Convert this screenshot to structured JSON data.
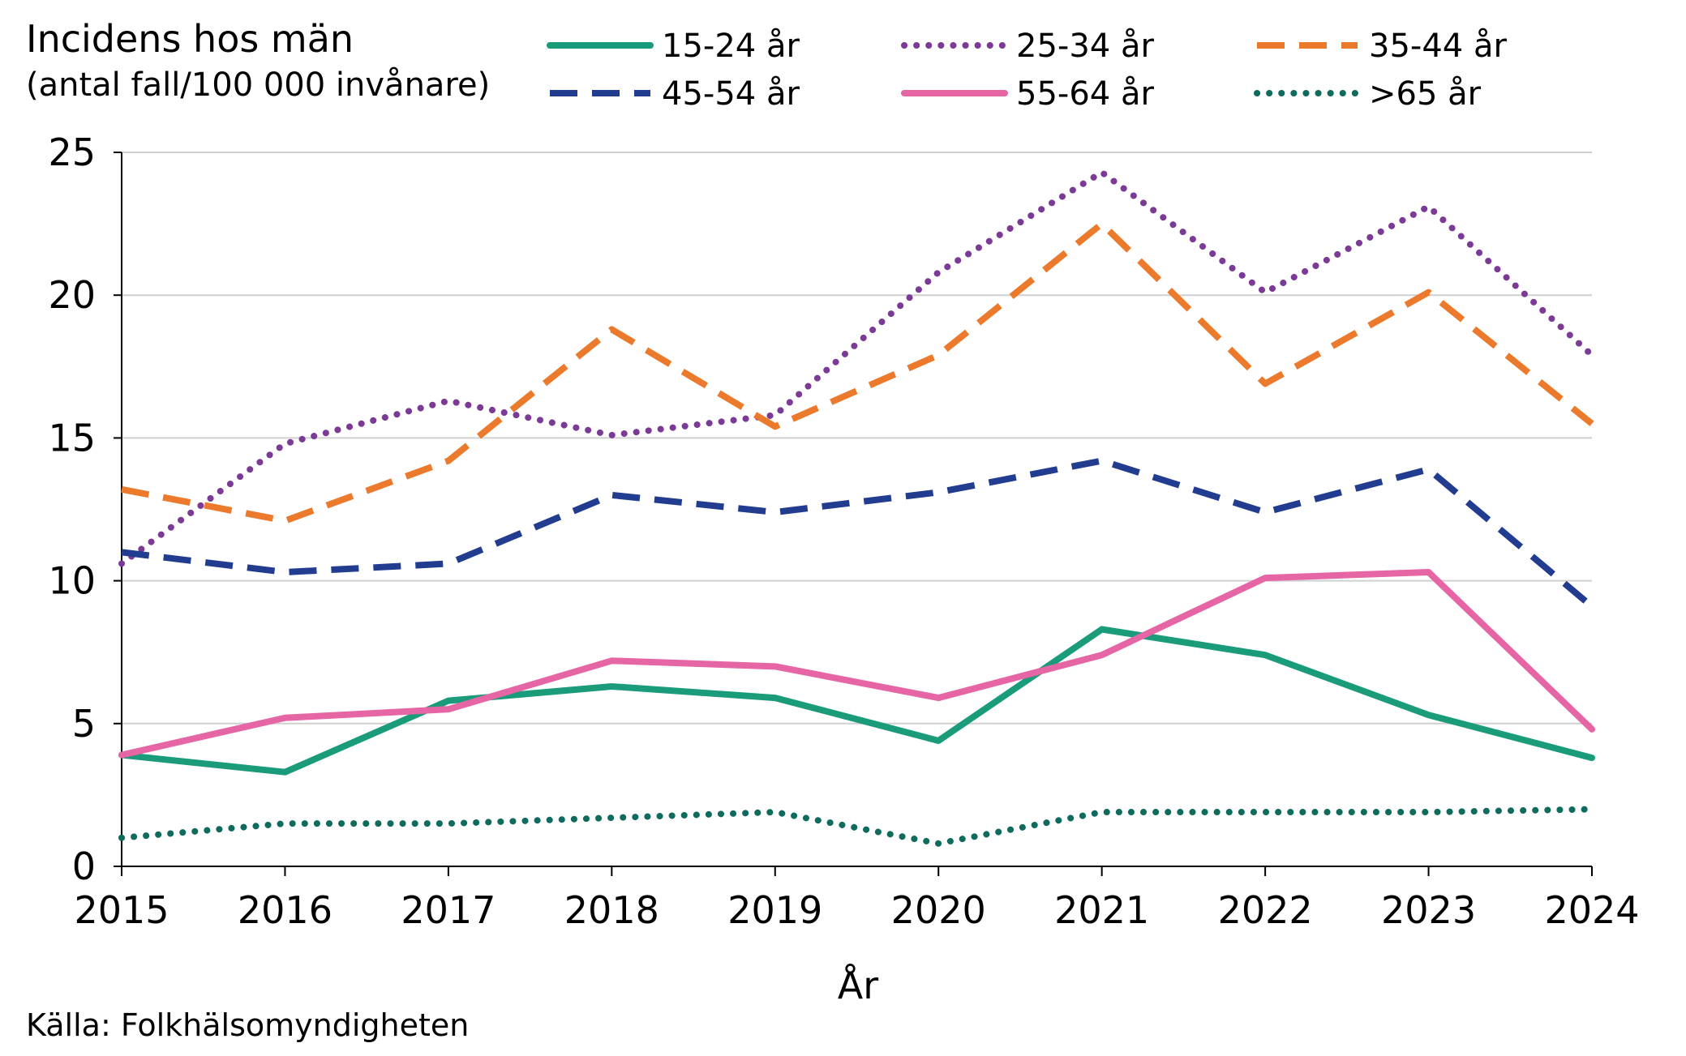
{
  "chart_data": {
    "type": "line",
    "title": "Incidens hos män",
    "subtitle": "(antal fall/100 000 invånare)",
    "xlabel": "År",
    "ylabel": "",
    "source": "Källa: Folkhälsomyndigheten",
    "x": [
      2015,
      2016,
      2017,
      2018,
      2019,
      2020,
      2021,
      2022,
      2023,
      2024
    ],
    "x_tick_labels": [
      "2015",
      "2016",
      "2017",
      "2018",
      "2019",
      "2020",
      "2021",
      "2022",
      "2023",
      "2024"
    ],
    "y_tick_values": [
      0,
      5,
      10,
      15,
      20,
      25
    ],
    "y_tick_labels": [
      "0",
      "5",
      "10",
      "15",
      "20",
      "25"
    ],
    "ylim": [
      0,
      25
    ],
    "grid": true,
    "legend_position": "top",
    "series": [
      {
        "name": "15-24 år",
        "color": "#1a9c7b",
        "style": "solid",
        "values": [
          3.9,
          3.3,
          5.8,
          6.3,
          5.9,
          4.4,
          8.3,
          7.4,
          5.3,
          3.8
        ]
      },
      {
        "name": "25-34 år",
        "color": "#7b3a96",
        "style": "dotted",
        "values": [
          10.6,
          14.8,
          16.3,
          15.1,
          15.8,
          20.8,
          24.3,
          20.1,
          23.1,
          17.9
        ]
      },
      {
        "name": "35-44 år",
        "color": "#ec7a2c",
        "style": "dashed",
        "values": [
          13.2,
          12.1,
          14.2,
          18.8,
          15.4,
          17.9,
          22.5,
          16.9,
          20.1,
          15.5
        ]
      },
      {
        "name": "45-54 år",
        "color": "#223d8f",
        "style": "dashed",
        "values": [
          11.0,
          10.3,
          10.6,
          13.0,
          12.4,
          13.1,
          14.2,
          12.4,
          13.9,
          9.1
        ]
      },
      {
        "name": "55-64 år",
        "color": "#e565a5",
        "style": "solid",
        "values": [
          3.9,
          5.2,
          5.5,
          7.2,
          7.0,
          5.9,
          7.4,
          10.1,
          10.3,
          4.8
        ]
      },
      {
        "name": ">65 år",
        "color": "#0e6b5e",
        "style": "dotted",
        "values": [
          1.0,
          1.5,
          1.5,
          1.7,
          1.9,
          0.8,
          1.9,
          1.9,
          1.9,
          2.0
        ]
      }
    ]
  },
  "colors": {
    "axis": "#000000",
    "grid": "#d0d0d0",
    "background": "#ffffff"
  }
}
